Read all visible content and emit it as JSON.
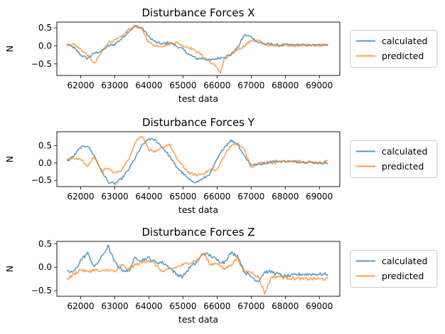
{
  "chart_data": [
    {
      "type": "line",
      "title": "Disturbance Forces X",
      "xlabel": "test data",
      "ylabel": "N",
      "xlim": [
        61300,
        69600
      ],
      "ylim": [
        -0.82,
        0.66
      ],
      "xticks": [
        62000,
        63000,
        64000,
        65000,
        66000,
        67000,
        68000,
        69000
      ],
      "yticks": [
        -0.5,
        0.0,
        0.5
      ],
      "grid": false,
      "legend_position": "right",
      "series": [
        {
          "name": "calculated",
          "color": "#1f77b4",
          "points": [
            [
              61600,
              0.05
            ],
            [
              61800,
              -0.05
            ],
            [
              62000,
              -0.25
            ],
            [
              62200,
              -0.35
            ],
            [
              62400,
              -0.2
            ],
            [
              62600,
              -0.15
            ],
            [
              62800,
              0.0
            ],
            [
              63000,
              0.05
            ],
            [
              63200,
              0.2
            ],
            [
              63400,
              0.4
            ],
            [
              63600,
              0.55
            ],
            [
              63800,
              0.5
            ],
            [
              64000,
              0.25
            ],
            [
              64200,
              0.1
            ],
            [
              64400,
              0.05
            ],
            [
              64600,
              0.1
            ],
            [
              64800,
              0.0
            ],
            [
              65000,
              -0.1
            ],
            [
              65200,
              -0.25
            ],
            [
              65400,
              -0.35
            ],
            [
              65600,
              -0.35
            ],
            [
              65800,
              -0.4
            ],
            [
              66000,
              -0.35
            ],
            [
              66200,
              -0.3
            ],
            [
              66400,
              -0.25
            ],
            [
              66600,
              -0.05
            ],
            [
              66800,
              0.3
            ],
            [
              67000,
              0.25
            ],
            [
              67200,
              0.1
            ],
            [
              67400,
              0.05
            ],
            [
              67600,
              0.05
            ],
            [
              67800,
              0.02
            ],
            [
              68000,
              0.03
            ],
            [
              68500,
              0.02
            ],
            [
              69000,
              0.02
            ],
            [
              69250,
              0.05
            ]
          ]
        },
        {
          "name": "predicted",
          "color": "#ff7f0e",
          "points": [
            [
              61600,
              0.0
            ],
            [
              61800,
              0.05
            ],
            [
              62000,
              -0.1
            ],
            [
              62200,
              -0.25
            ],
            [
              62400,
              -0.5
            ],
            [
              62600,
              -0.2
            ],
            [
              62800,
              0.1
            ],
            [
              63000,
              0.15
            ],
            [
              63200,
              0.25
            ],
            [
              63400,
              0.45
            ],
            [
              63600,
              0.55
            ],
            [
              63800,
              0.45
            ],
            [
              64000,
              0.1
            ],
            [
              64200,
              0.0
            ],
            [
              64400,
              0.0
            ],
            [
              64600,
              0.05
            ],
            [
              64800,
              0.1
            ],
            [
              65000,
              0.0
            ],
            [
              65200,
              -0.05
            ],
            [
              65400,
              -0.15
            ],
            [
              65600,
              -0.3
            ],
            [
              65800,
              -0.45
            ],
            [
              66000,
              -0.6
            ],
            [
              66100,
              -0.75
            ],
            [
              66200,
              -0.4
            ],
            [
              66400,
              -0.25
            ],
            [
              66600,
              -0.1
            ],
            [
              66800,
              0.0
            ],
            [
              67000,
              0.15
            ],
            [
              67200,
              0.15
            ],
            [
              67400,
              0.05
            ],
            [
              67600,
              0.0
            ],
            [
              68000,
              0.02
            ],
            [
              68500,
              0.02
            ],
            [
              69000,
              0.02
            ],
            [
              69250,
              0.03
            ]
          ]
        }
      ]
    },
    {
      "type": "line",
      "title": "Disturbance Forces Y",
      "xlabel": "test data",
      "ylabel": "N",
      "xlim": [
        61300,
        69600
      ],
      "ylim": [
        -0.68,
        0.9
      ],
      "xticks": [
        62000,
        63000,
        64000,
        65000,
        66000,
        67000,
        68000,
        69000
      ],
      "yticks": [
        -0.5,
        0.0,
        0.5
      ],
      "grid": false,
      "legend_position": "right",
      "series": [
        {
          "name": "calculated",
          "color": "#1f77b4",
          "points": [
            [
              61600,
              0.05
            ],
            [
              61800,
              0.2
            ],
            [
              62000,
              0.45
            ],
            [
              62200,
              0.5
            ],
            [
              62400,
              0.2
            ],
            [
              62600,
              -0.2
            ],
            [
              62800,
              -0.55
            ],
            [
              63000,
              -0.6
            ],
            [
              63200,
              -0.45
            ],
            [
              63400,
              -0.2
            ],
            [
              63600,
              0.15
            ],
            [
              63800,
              0.5
            ],
            [
              64000,
              0.7
            ],
            [
              64200,
              0.65
            ],
            [
              64400,
              0.45
            ],
            [
              64600,
              0.2
            ],
            [
              64800,
              -0.1
            ],
            [
              65000,
              -0.3
            ],
            [
              65200,
              -0.5
            ],
            [
              65400,
              -0.55
            ],
            [
              65600,
              -0.45
            ],
            [
              65800,
              -0.3
            ],
            [
              66000,
              0.1
            ],
            [
              66200,
              0.45
            ],
            [
              66400,
              0.65
            ],
            [
              66600,
              0.55
            ],
            [
              66800,
              0.2
            ],
            [
              67000,
              -0.05
            ],
            [
              67200,
              -0.05
            ],
            [
              67400,
              0.0
            ],
            [
              67600,
              0.05
            ],
            [
              68000,
              0.05
            ],
            [
              68500,
              0.03
            ],
            [
              69000,
              0.0
            ],
            [
              69250,
              0.0
            ]
          ]
        },
        {
          "name": "predicted",
          "color": "#ff7f0e",
          "points": [
            [
              61600,
              0.1
            ],
            [
              61800,
              0.15
            ],
            [
              62000,
              0.1
            ],
            [
              62200,
              -0.1
            ],
            [
              62400,
              0.2
            ],
            [
              62600,
              -0.25
            ],
            [
              62800,
              -0.15
            ],
            [
              63000,
              -0.3
            ],
            [
              63200,
              -0.2
            ],
            [
              63400,
              0.1
            ],
            [
              63600,
              0.6
            ],
            [
              63800,
              0.8
            ],
            [
              64000,
              0.4
            ],
            [
              64200,
              0.3
            ],
            [
              64400,
              0.45
            ],
            [
              64600,
              0.55
            ],
            [
              64800,
              0.15
            ],
            [
              65000,
              -0.1
            ],
            [
              65200,
              -0.3
            ],
            [
              65400,
              -0.35
            ],
            [
              65600,
              -0.3
            ],
            [
              65800,
              -0.2
            ],
            [
              66000,
              -0.2
            ],
            [
              66200,
              0.2
            ],
            [
              66400,
              0.5
            ],
            [
              66600,
              0.55
            ],
            [
              66800,
              0.4
            ],
            [
              67000,
              -0.15
            ],
            [
              67200,
              0.0
            ],
            [
              67400,
              0.0
            ],
            [
              67600,
              0.0
            ],
            [
              68000,
              0.05
            ],
            [
              68500,
              0.05
            ],
            [
              69000,
              0.0
            ],
            [
              69250,
              0.05
            ]
          ]
        }
      ]
    },
    {
      "type": "line",
      "title": "Disturbance Forces Z",
      "xlabel": "test data",
      "ylabel": "N",
      "xlim": [
        61300,
        69600
      ],
      "ylim": [
        -0.62,
        0.55
      ],
      "xticks": [
        62000,
        63000,
        64000,
        65000,
        66000,
        67000,
        68000,
        69000
      ],
      "yticks": [
        -0.5,
        0.0,
        0.5
      ],
      "grid": false,
      "legend_position": "right",
      "series": [
        {
          "name": "calculated",
          "color": "#1f77b4",
          "points": [
            [
              61600,
              -0.1
            ],
            [
              61800,
              -0.1
            ],
            [
              62000,
              0.15
            ],
            [
              62200,
              0.3
            ],
            [
              62400,
              0.0
            ],
            [
              62600,
              0.2
            ],
            [
              62800,
              0.45
            ],
            [
              63000,
              0.1
            ],
            [
              63200,
              -0.05
            ],
            [
              63400,
              -0.1
            ],
            [
              63600,
              0.2
            ],
            [
              63800,
              0.15
            ],
            [
              64000,
              0.2
            ],
            [
              64200,
              0.1
            ],
            [
              64400,
              0.1
            ],
            [
              64600,
              0.0
            ],
            [
              64800,
              -0.15
            ],
            [
              65000,
              -0.2
            ],
            [
              65200,
              0.0
            ],
            [
              65400,
              0.1
            ],
            [
              65600,
              0.3
            ],
            [
              65800,
              0.25
            ],
            [
              66000,
              0.15
            ],
            [
              66200,
              0.1
            ],
            [
              66400,
              0.3
            ],
            [
              66600,
              0.25
            ],
            [
              66800,
              -0.1
            ],
            [
              67000,
              -0.2
            ],
            [
              67200,
              -0.3
            ],
            [
              67400,
              -0.1
            ],
            [
              67600,
              -0.1
            ],
            [
              67800,
              -0.15
            ],
            [
              68000,
              -0.2
            ],
            [
              68400,
              -0.15
            ],
            [
              68800,
              -0.15
            ],
            [
              69000,
              -0.15
            ],
            [
              69250,
              -0.15
            ]
          ]
        },
        {
          "name": "predicted",
          "color": "#ff7f0e",
          "points": [
            [
              61600,
              -0.25
            ],
            [
              61800,
              -0.15
            ],
            [
              62000,
              -0.05
            ],
            [
              62200,
              -0.1
            ],
            [
              62400,
              -0.05
            ],
            [
              62600,
              -0.1
            ],
            [
              62800,
              -0.05
            ],
            [
              63000,
              -0.1
            ],
            [
              63200,
              0.05
            ],
            [
              63400,
              -0.05
            ],
            [
              63600,
              0.05
            ],
            [
              63800,
              0.1
            ],
            [
              64000,
              0.15
            ],
            [
              64200,
              0.05
            ],
            [
              64400,
              -0.1
            ],
            [
              64600,
              -0.05
            ],
            [
              64800,
              0.0
            ],
            [
              65000,
              0.05
            ],
            [
              65200,
              0.1
            ],
            [
              65400,
              0.15
            ],
            [
              65600,
              0.3
            ],
            [
              65800,
              0.05
            ],
            [
              66000,
              0.1
            ],
            [
              66200,
              -0.05
            ],
            [
              66400,
              0.05
            ],
            [
              66600,
              0.2
            ],
            [
              66800,
              -0.1
            ],
            [
              67000,
              -0.1
            ],
            [
              67200,
              -0.2
            ],
            [
              67400,
              -0.55
            ],
            [
              67600,
              -0.2
            ],
            [
              67800,
              -0.2
            ],
            [
              68000,
              -0.22
            ],
            [
              68500,
              -0.25
            ],
            [
              69000,
              -0.25
            ],
            [
              69250,
              -0.25
            ]
          ]
        }
      ]
    }
  ]
}
